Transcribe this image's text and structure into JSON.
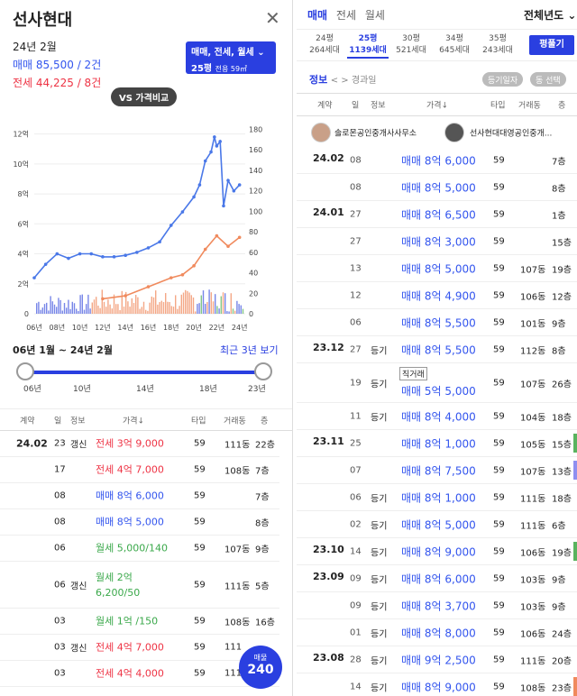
{
  "left": {
    "title": "선사현대",
    "close": "✕",
    "date": "24년 2월",
    "sale_line": "매매 85,500 / 2건",
    "jeonse_line": "전세 44,225 / 8건",
    "selector": {
      "types": "매매, 전세, 월세 ⌄",
      "size": "25평",
      "area": "전용 59㎡"
    },
    "vs_label": "VS 가격비교",
    "range_label": "06년 1월 ~ 24년 2월",
    "range_recent": "최근 3년 보기",
    "slider_labels": [
      "06년",
      "10년",
      "14년",
      "18년",
      "23년"
    ],
    "table_headers": [
      "계약",
      "일",
      "정보",
      "가격↓",
      "타입",
      "거래동",
      "층"
    ],
    "rows": [
      {
        "month": "24.02",
        "day": "23",
        "info": "갱신",
        "type": "전세",
        "price": "3억 9,000",
        "size": "59",
        "dong": "111동",
        "floor": "22층"
      },
      {
        "month": "",
        "day": "17",
        "info": "",
        "type": "전세",
        "price": "4억 7,000",
        "size": "59",
        "dong": "108동",
        "floor": "7층"
      },
      {
        "month": "",
        "day": "08",
        "info": "",
        "type": "매매",
        "price": "8억 6,000",
        "size": "59",
        "dong": "",
        "floor": "7층"
      },
      {
        "month": "",
        "day": "08",
        "info": "",
        "type": "매매",
        "price": "8억 5,000",
        "size": "59",
        "dong": "",
        "floor": "8층"
      },
      {
        "month": "",
        "day": "06",
        "info": "",
        "type": "월세",
        "price": "5,000/140",
        "size": "59",
        "dong": "107동",
        "floor": "9층"
      },
      {
        "month": "",
        "day": "06",
        "info": "갱신",
        "type": "월세",
        "price": "2억",
        "price2": "6,200/50",
        "size": "59",
        "dong": "111동",
        "floor": "5층"
      },
      {
        "month": "",
        "day": "03",
        "info": "",
        "type": "월세",
        "price": "1억 /150",
        "size": "59",
        "dong": "108동",
        "floor": "16층"
      },
      {
        "month": "",
        "day": "03",
        "info": "갱신",
        "type": "전세",
        "price": "4억 7,000",
        "size": "59",
        "dong": "111",
        "floor": ""
      },
      {
        "month": "",
        "day": "03",
        "info": "",
        "type": "전세",
        "price": "4억 4,000",
        "size": "59",
        "dong": "111",
        "floor": ""
      }
    ],
    "fab": {
      "label": "매물",
      "count": "240"
    }
  },
  "chart_data": {
    "type": "line",
    "x_ticks": [
      "06년",
      "08년",
      "10년",
      "12년",
      "14년",
      "16년",
      "18년",
      "20년",
      "22년",
      "24년"
    ],
    "left_axis_ticks": [
      "0",
      "2억",
      "4억",
      "6억",
      "8억",
      "10억",
      "12억"
    ],
    "right_axis_ticks": [
      "0",
      "20",
      "40",
      "60",
      "80",
      "100",
      "120",
      "140",
      "160",
      "180"
    ],
    "ylim": [
      0,
      13
    ],
    "y2lim": [
      0,
      190
    ],
    "series": [
      {
        "color": "#4a78e8",
        "x": [
          2006,
          2007,
          2008,
          2009,
          2010,
          2011,
          2012,
          2013,
          2014,
          2015,
          2016,
          2017,
          2018,
          2019,
          2020,
          2020.5,
          2021,
          2021.5,
          2021.8,
          2022,
          2022.3,
          2022.6,
          2023,
          2023.5,
          2024
        ],
        "values": [
          2.4,
          3.3,
          4.0,
          3.7,
          4.0,
          4.0,
          3.8,
          3.8,
          3.9,
          4.1,
          4.4,
          4.8,
          5.9,
          6.8,
          7.8,
          8.6,
          10.2,
          10.8,
          11.8,
          11.2,
          11.5,
          7.2,
          8.9,
          8.2,
          8.6
        ]
      },
      {
        "color": "#f08a5d",
        "x": [
          2012,
          2014,
          2016,
          2018,
          2019,
          2020,
          2021,
          2022,
          2023,
          2024
        ],
        "values": [
          1.0,
          1.2,
          1.8,
          2.4,
          2.6,
          3.2,
          4.3,
          5.2,
          4.5,
          5.1
        ]
      }
    ],
    "volume_colors": [
      "#4a5ee0",
      "#f08a5d",
      "#59b35e"
    ]
  },
  "right": {
    "tabs": [
      "매매",
      "전세",
      "월세"
    ],
    "year_select": "전체년도 ⌄",
    "sizes": [
      {
        "p": "24평",
        "h": "264세대"
      },
      {
        "p": "25평",
        "h": "1139세대"
      },
      {
        "p": "30평",
        "h": "521세대"
      },
      {
        "p": "34평",
        "h": "645세대"
      },
      {
        "p": "35평",
        "h": "243세대"
      }
    ],
    "fold_button": "평풀기",
    "info_label": "정보",
    "info_nav": "< > 경과일",
    "chip1": "등기일자",
    "chip2": "동 선택",
    "headers": [
      "계약",
      "일",
      "정보",
      "가격↓",
      "타입",
      "거래동",
      "층"
    ],
    "agent1": "솔로몬공인중개사사무소",
    "agent2": "선사현대대영공인중개...",
    "rows": [
      {
        "month": "24.02",
        "day": "08",
        "info": "",
        "note": "",
        "type": "매매",
        "price": "8억 6,000",
        "size": "59",
        "dong": "",
        "floor": "7층",
        "h": 30,
        "bar": ""
      },
      {
        "month": "",
        "day": "08",
        "info": "",
        "note": "",
        "type": "매매",
        "price": "8억 5,000",
        "size": "59",
        "dong": "",
        "floor": "8층",
        "h": 30,
        "bar": ""
      },
      {
        "month": "24.01",
        "day": "27",
        "info": "",
        "note": "",
        "type": "매매",
        "price": "8억 6,500",
        "size": "59",
        "dong": "",
        "floor": "1층",
        "h": 30,
        "bar": ""
      },
      {
        "month": "",
        "day": "27",
        "info": "",
        "note": "",
        "type": "매매",
        "price": "8억 3,000",
        "size": "59",
        "dong": "",
        "floor": "15층",
        "h": 30,
        "bar": ""
      },
      {
        "month": "",
        "day": "13",
        "info": "",
        "note": "",
        "type": "매매",
        "price": "8억 5,000",
        "size": "59",
        "dong": "107동",
        "floor": "19층",
        "h": 30,
        "bar": ""
      },
      {
        "month": "",
        "day": "12",
        "info": "",
        "note": "",
        "type": "매매",
        "price": "8억 4,900",
        "size": "59",
        "dong": "106동",
        "floor": "12층",
        "h": 30,
        "bar": ""
      },
      {
        "month": "",
        "day": "06",
        "info": "",
        "note": "",
        "type": "매매",
        "price": "8억 5,500",
        "size": "59",
        "dong": "101동",
        "floor": "9층",
        "h": 30,
        "bar": ""
      },
      {
        "month": "23.12",
        "day": "27",
        "info": "등기",
        "note": "",
        "type": "매매",
        "price": "8억 5,500",
        "size": "59",
        "dong": "112동",
        "floor": "8층",
        "h": 30,
        "bar": ""
      },
      {
        "month": "",
        "day": "19",
        "info": "등기",
        "note": "직거래",
        "type": "매매",
        "price": "5억 5,000",
        "size": "59",
        "dong": "107동",
        "floor": "26층",
        "h": 44,
        "bar": ""
      },
      {
        "month": "",
        "day": "11",
        "info": "등기",
        "note": "",
        "type": "매매",
        "price": "8억 4,000",
        "size": "59",
        "dong": "104동",
        "floor": "18층",
        "h": 30,
        "bar": ""
      },
      {
        "month": "23.11",
        "day": "25",
        "info": "",
        "note": "",
        "type": "매매",
        "price": "8억 1,000",
        "size": "59",
        "dong": "105동",
        "floor": "15층",
        "h": 30,
        "bar": "#59b35e"
      },
      {
        "month": "",
        "day": "07",
        "info": "",
        "note": "",
        "type": "매매",
        "price": "8억 7,500",
        "size": "59",
        "dong": "107동",
        "floor": "13층",
        "h": 30,
        "bar": "#8f8ff0"
      },
      {
        "month": "",
        "day": "06",
        "info": "등기",
        "note": "",
        "type": "매매",
        "price": "8억 1,000",
        "size": "59",
        "dong": "111동",
        "floor": "18층",
        "h": 30,
        "bar": ""
      },
      {
        "month": "",
        "day": "02",
        "info": "등기",
        "note": "",
        "type": "매매",
        "price": "8억 5,000",
        "size": "59",
        "dong": "111동",
        "floor": "6층",
        "h": 30,
        "bar": ""
      },
      {
        "month": "23.10",
        "day": "14",
        "info": "등기",
        "note": "",
        "type": "매매",
        "price": "8억 9,000",
        "size": "59",
        "dong": "106동",
        "floor": "19층",
        "h": 30,
        "bar": "#59b35e"
      },
      {
        "month": "23.09",
        "day": "09",
        "info": "등기",
        "note": "",
        "type": "매매",
        "price": "8억 6,000",
        "size": "59",
        "dong": "103동",
        "floor": "9층",
        "h": 30,
        "bar": ""
      },
      {
        "month": "",
        "day": "09",
        "info": "등기",
        "note": "",
        "type": "매매",
        "price": "8억 3,700",
        "size": "59",
        "dong": "103동",
        "floor": "9층",
        "h": 30,
        "bar": ""
      },
      {
        "month": "",
        "day": "01",
        "info": "등기",
        "note": "",
        "type": "매매",
        "price": "8억 8,000",
        "size": "59",
        "dong": "106동",
        "floor": "24층",
        "h": 30,
        "bar": ""
      },
      {
        "month": "23.08",
        "day": "28",
        "info": "등기",
        "note": "",
        "type": "매매",
        "price": "9억 2,500",
        "size": "59",
        "dong": "111동",
        "floor": "20층",
        "h": 30,
        "bar": ""
      },
      {
        "month": "",
        "day": "14",
        "info": "등기",
        "note": "",
        "type": "매매",
        "price": "8억 9,000",
        "size": "59",
        "dong": "108동",
        "floor": "23층",
        "h": 30,
        "bar": "#f08a5d"
      }
    ]
  }
}
